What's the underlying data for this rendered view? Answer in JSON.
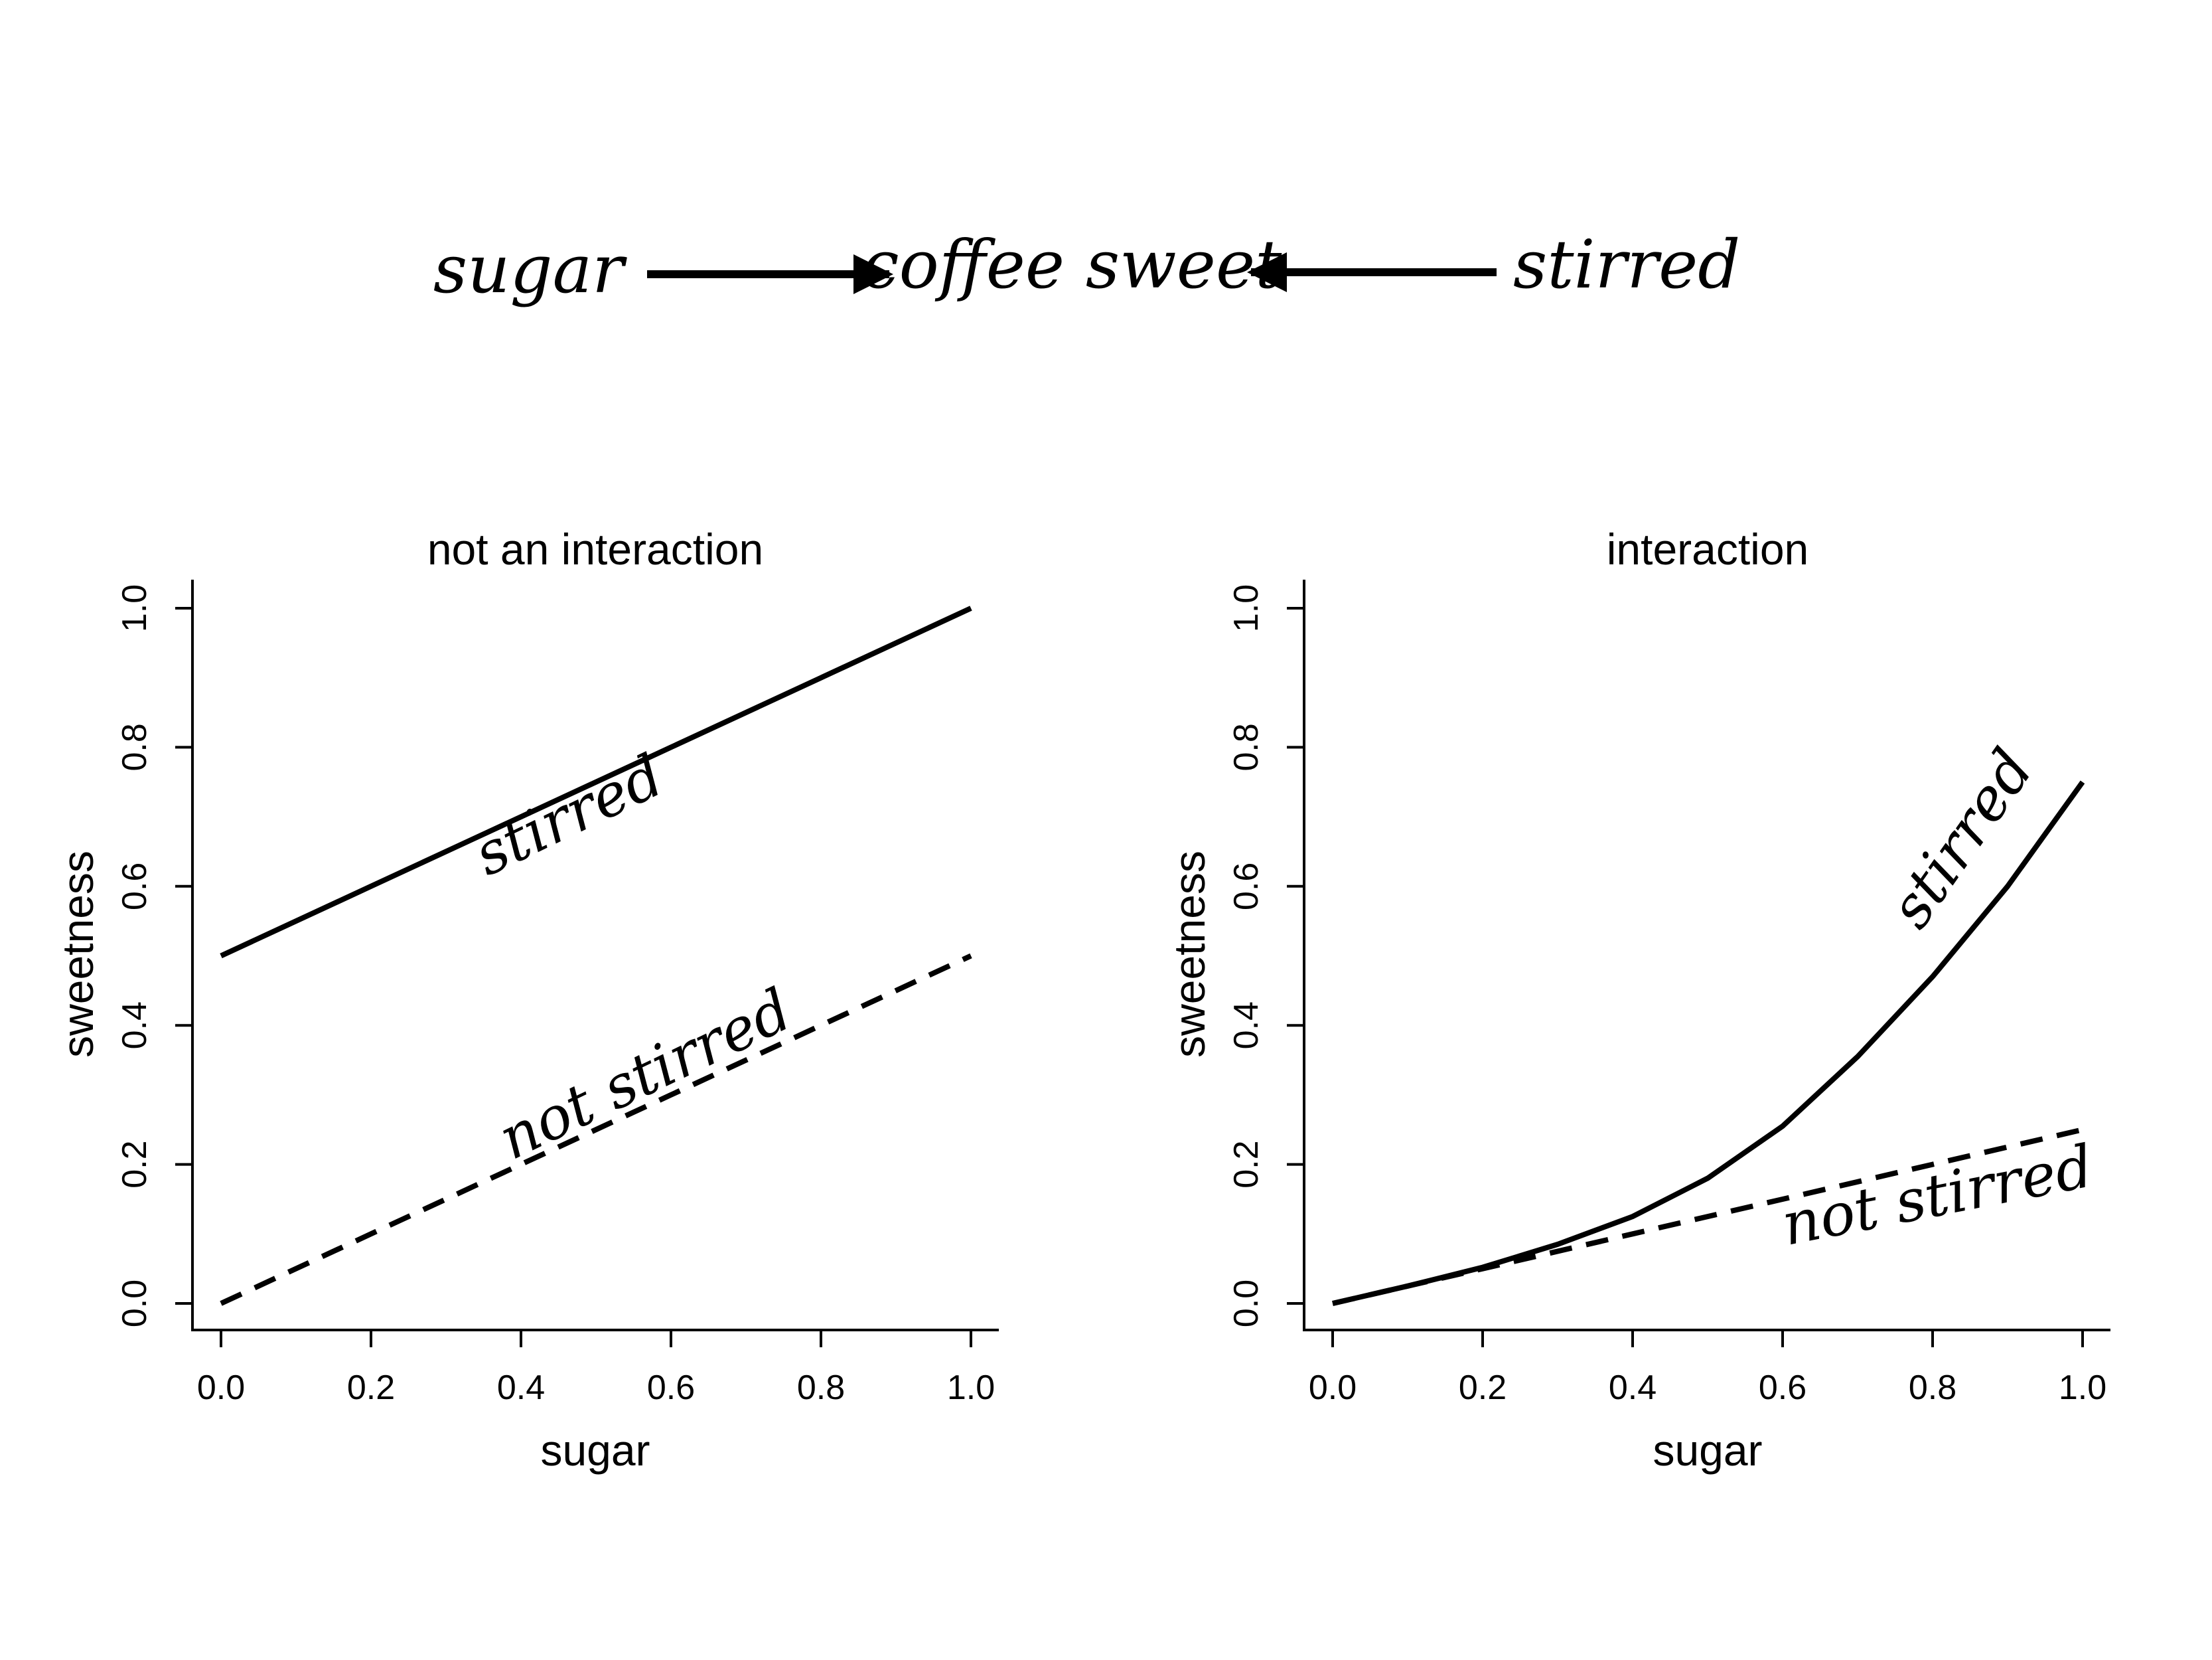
{
  "dag": {
    "left_node": "sugar",
    "center_node": "coffee sweet",
    "right_node": "stirred"
  },
  "chart_data": [
    {
      "type": "line",
      "title": "not an interaction",
      "xlabel": "sugar",
      "ylabel": "sweetness",
      "xlim": [
        0,
        1
      ],
      "ylim": [
        0,
        1
      ],
      "xticks": [
        "0.0",
        "0.2",
        "0.4",
        "0.6",
        "0.8",
        "1.0"
      ],
      "yticks": [
        "0.0",
        "0.2",
        "0.4",
        "0.6",
        "0.8",
        "1.0"
      ],
      "grid": false,
      "series": [
        {
          "name": "stirred",
          "style": "solid",
          "x": [
            0.0,
            0.2,
            0.4,
            0.6,
            0.8,
            1.0
          ],
          "y": [
            0.5,
            0.6,
            0.7,
            0.8,
            0.9,
            1.0
          ]
        },
        {
          "name": "not stirred",
          "style": "dashed",
          "x": [
            0.0,
            0.2,
            0.4,
            0.6,
            0.8,
            1.0
          ],
          "y": [
            0.0,
            0.1,
            0.2,
            0.3,
            0.4,
            0.5
          ]
        }
      ]
    },
    {
      "type": "line",
      "title": "interaction",
      "xlabel": "sugar",
      "ylabel": "sweetness",
      "xlim": [
        0,
        1
      ],
      "ylim": [
        0,
        1
      ],
      "xticks": [
        "0.0",
        "0.2",
        "0.4",
        "0.6",
        "0.8",
        "1.0"
      ],
      "yticks": [
        "0.0",
        "0.2",
        "0.4",
        "0.6",
        "0.8",
        "1.0"
      ],
      "grid": false,
      "series": [
        {
          "name": "stirred",
          "style": "solid",
          "x": [
            0.0,
            0.1,
            0.2,
            0.3,
            0.4,
            0.5,
            0.6,
            0.7,
            0.8,
            0.9,
            1.0
          ],
          "y": [
            0.0,
            0.025,
            0.052,
            0.085,
            0.125,
            0.18,
            0.255,
            0.355,
            0.47,
            0.6,
            0.75
          ]
        },
        {
          "name": "not stirred",
          "style": "dashed",
          "x": [
            0.0,
            0.2,
            0.4,
            0.6,
            0.8,
            1.0
          ],
          "y": [
            0.0,
            0.05,
            0.1,
            0.15,
            0.2,
            0.25
          ]
        }
      ]
    }
  ]
}
